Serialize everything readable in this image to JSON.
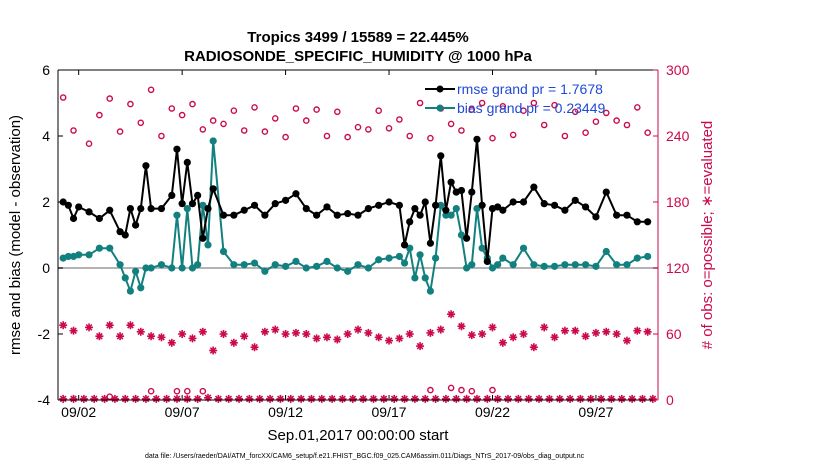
{
  "chart_data": {
    "type": "line",
    "title": "Tropics 3499 / 15589 = 22.445%",
    "subtitle": "RADIOSONDE_SPECIFIC_HUMIDITY @ 1000 hPa",
    "xlabel": "Sep.01,2017 00:00:00 start",
    "ylabel": "rmse and bias (model - observation)",
    "ylabel_right": "# of obs: o=possible; ∗=evaluated",
    "footnote": "data file: /Users/raeder/DAI/ATM_forcXX/CAM6_setup/f.e21.FHIST_BGC.f09_025.CAM6assim.011/Diags_NTrS_2017-09/obs_diag_output.nc",
    "xlim": [
      1.5,
      30.5
    ],
    "ylim": [
      -4,
      6
    ],
    "ylim_right": [
      0,
      300
    ],
    "yticks": [
      "-4",
      "-2",
      "0",
      "2",
      "4",
      "6"
    ],
    "yticks_right": [
      "0",
      "60",
      "120",
      "180",
      "240",
      "300"
    ],
    "xticks": [
      {
        "x": 2.5,
        "label": "09/02"
      },
      {
        "x": 7.5,
        "label": "09/07"
      },
      {
        "x": 12.5,
        "label": "09/12"
      },
      {
        "x": 17.5,
        "label": "09/17"
      },
      {
        "x": 22.5,
        "label": "09/22"
      },
      {
        "x": 27.5,
        "label": "09/27"
      }
    ],
    "legend": [
      "rmse grand pr = 1.7678",
      "bias grand pr = 0.23449"
    ],
    "colors": {
      "rmse": "#000000",
      "bias": "#138080",
      "obs": "#cc0a4a",
      "zero": "#b3b3b3",
      "legend_text": "#1f49d8"
    },
    "rmse": {
      "x": [
        1.75,
        2,
        2.25,
        2.5,
        3,
        3.5,
        4,
        4.5,
        4.75,
        5,
        5.25,
        5.5,
        5.75,
        6,
        6.5,
        7,
        7.25,
        7.5,
        7.75,
        8,
        8.25,
        8.5,
        8.75,
        9,
        9.5,
        10,
        10.5,
        11,
        11.5,
        12,
        12.5,
        13,
        13.5,
        14,
        14.5,
        15,
        15.5,
        16,
        16.5,
        17,
        17.5,
        18,
        18.25,
        18.5,
        18.75,
        19,
        19.25,
        19.5,
        19.75,
        20,
        20.25,
        20.5,
        20.75,
        21,
        21.25,
        21.5,
        21.75,
        22,
        22.25,
        22.5,
        22.75,
        23,
        23.5,
        24,
        24.5,
        25,
        25.5,
        26,
        26.5,
        27,
        27.5,
        28,
        28.5,
        29,
        29.5,
        30
      ],
      "y": [
        2.0,
        1.9,
        1.5,
        1.85,
        1.7,
        1.5,
        1.75,
        1.1,
        1.0,
        1.8,
        1.3,
        1.8,
        3.1,
        1.8,
        1.8,
        2.2,
        3.6,
        1.95,
        3.2,
        1.95,
        2.2,
        0.9,
        1.8,
        2.4,
        1.6,
        1.6,
        1.75,
        1.9,
        1.6,
        1.95,
        2.05,
        2.25,
        1.8,
        1.6,
        1.85,
        1.6,
        1.65,
        1.6,
        1.8,
        1.9,
        2.0,
        1.9,
        0.7,
        1.4,
        1.8,
        1.6,
        2.0,
        0.75,
        1.9,
        3.4,
        1.75,
        2.6,
        2.3,
        2.35,
        0.9,
        2.3,
        3.9,
        1.9,
        0.2,
        1.8,
        1.85,
        1.75,
        2.0,
        2.0,
        2.45,
        1.95,
        1.9,
        1.75,
        2.05,
        1.85,
        1.55,
        2.3,
        1.6,
        1.6,
        1.4,
        1.4
      ]
    },
    "bias": {
      "x": [
        1.75,
        2,
        2.25,
        2.5,
        3,
        3.5,
        4,
        4.5,
        4.75,
        5,
        5.25,
        5.5,
        5.75,
        6,
        6.5,
        7,
        7.25,
        7.5,
        7.75,
        8,
        8.25,
        8.5,
        8.75,
        9,
        9.5,
        10,
        10.5,
        11,
        11.5,
        12,
        12.5,
        13,
        13.5,
        14,
        14.5,
        15,
        15.5,
        16,
        16.5,
        17,
        17.5,
        18,
        18.25,
        18.5,
        18.75,
        19,
        19.25,
        19.5,
        19.75,
        20,
        20.25,
        20.5,
        20.75,
        21,
        21.25,
        21.5,
        21.75,
        22,
        22.25,
        22.5,
        22.75,
        23,
        23.5,
        24,
        24.5,
        25,
        25.5,
        26,
        26.5,
        27,
        27.5,
        28,
        28.5,
        29,
        29.5,
        30
      ],
      "y": [
        0.3,
        0.35,
        0.35,
        0.4,
        0.4,
        0.6,
        0.6,
        0.1,
        -0.3,
        -0.7,
        -0.1,
        -0.6,
        0.0,
        0.0,
        0.1,
        0.0,
        1.6,
        0.0,
        1.8,
        0.0,
        0.1,
        1.9,
        0.7,
        3.85,
        0.5,
        0.1,
        0.1,
        0.15,
        -0.1,
        0.1,
        0.05,
        0.2,
        0.0,
        0.05,
        0.2,
        0.0,
        -0.1,
        0.1,
        0.0,
        0.25,
        0.3,
        0.35,
        0.15,
        0.6,
        -0.3,
        0.4,
        -0.3,
        -0.7,
        0.3,
        1.9,
        1.6,
        1.6,
        1.8,
        1.0,
        0.0,
        0.1,
        1.8,
        0.6,
        0.3,
        0.0,
        0.1,
        0.3,
        0.1,
        0.6,
        0.1,
        0.05,
        0.05,
        0.1,
        0.1,
        0.1,
        0.05,
        0.5,
        0.1,
        0.1,
        0.3,
        0.35
      ]
    },
    "obs_possible": {
      "x": [
        1.75,
        2.25,
        3,
        3.5,
        4,
        4.5,
        5,
        5.5,
        6,
        6.5,
        7,
        7.5,
        8,
        8.5,
        9,
        9.5,
        10,
        10.5,
        11,
        11.5,
        12,
        12.5,
        13,
        13.5,
        14,
        14.5,
        15,
        15.5,
        16,
        16.5,
        17,
        17.5,
        18,
        18.5,
        19,
        19.5,
        20,
        20.5,
        21,
        21.5,
        22,
        22.5,
        23,
        23.5,
        24,
        24.5,
        25,
        25.5,
        26,
        26.5,
        27,
        27.5,
        28,
        28.5,
        29,
        29.5,
        30
      ],
      "y": [
        275,
        245,
        233,
        259,
        274,
        244,
        269,
        252,
        282,
        240,
        265,
        259,
        269,
        246,
        254,
        251,
        263,
        245,
        266,
        244,
        256,
        239,
        265,
        254,
        264,
        240,
        262,
        239,
        248,
        246,
        263,
        247,
        255,
        240,
        270,
        238,
        265,
        251,
        245,
        264,
        270,
        238,
        267,
        241,
        263,
        270,
        250,
        268,
        240,
        262,
        243,
        253,
        261,
        254,
        250,
        266,
        243
      ]
    },
    "obs_possible_low": {
      "x": [
        4,
        6,
        7.25,
        7.75,
        8.5,
        19.5,
        20.5,
        21,
        21.5,
        22.5
      ],
      "y": [
        3,
        8,
        8,
        8,
        8,
        9,
        11,
        9,
        8,
        9
      ]
    },
    "obs_evaluated": {
      "x": [
        1.75,
        2.25,
        3,
        3.5,
        4,
        4.5,
        5,
        5.5,
        6,
        6.5,
        7,
        7.5,
        8,
        8.5,
        9,
        9.5,
        10,
        10.5,
        11,
        11.5,
        12,
        12.5,
        13,
        13.5,
        14,
        14.5,
        15,
        15.5,
        16,
        16.5,
        17,
        17.5,
        18,
        18.5,
        19,
        19.5,
        20,
        20.5,
        21,
        21.5,
        22,
        22.5,
        23,
        23.5,
        24,
        24.5,
        25,
        25.5,
        26,
        26.5,
        27,
        27.5,
        28,
        28.5,
        29,
        29.5,
        30
      ],
      "y": [
        68,
        63,
        66,
        58,
        68,
        58,
        68,
        62,
        58,
        57,
        52,
        60,
        56,
        62,
        45,
        60,
        52,
        58,
        48,
        62,
        64,
        60,
        61,
        60,
        56,
        57,
        55,
        60,
        64,
        61,
        57,
        54,
        56,
        60,
        49,
        61,
        64,
        78,
        67,
        59,
        60,
        66,
        52,
        57,
        60,
        48,
        66,
        57,
        63,
        63,
        58,
        61,
        62,
        60,
        54,
        63,
        62
      ]
    },
    "obs_evaluated_low": {
      "x": [
        1.75,
        2.25,
        2.75,
        3.25,
        3.75,
        4.25,
        4.75,
        5.25,
        5.75,
        6.25,
        6.75,
        7.25,
        7.75,
        8.25,
        8.75,
        9.25,
        9.75,
        10.25,
        10.75,
        11.25,
        11.75,
        12.25,
        12.75,
        13.25,
        13.75,
        14.25,
        14.75,
        15.25,
        15.75,
        16.25,
        16.75,
        17.25,
        17.75,
        18.25,
        18.75,
        19.25,
        19.75,
        20.25,
        20.75,
        21.25,
        21.75,
        22.25,
        22.75,
        23.25,
        23.75,
        24.25,
        24.75,
        25.25,
        25.75,
        26.25,
        26.75,
        27.25,
        27.75,
        28.25,
        28.75,
        29.25,
        29.75,
        30.25
      ],
      "y": [
        1,
        1,
        1,
        1,
        1,
        1,
        1,
        1,
        1,
        1,
        1,
        1,
        1,
        1,
        2,
        1,
        1,
        1,
        1,
        1,
        1,
        1,
        1,
        1,
        1,
        1,
        1,
        1,
        1,
        1,
        1,
        1,
        1,
        1,
        1,
        1,
        1,
        1,
        1,
        1,
        1,
        1,
        1,
        1,
        1,
        1,
        1,
        1,
        1,
        1,
        1,
        1,
        1,
        1,
        1,
        1,
        1,
        1
      ]
    }
  }
}
